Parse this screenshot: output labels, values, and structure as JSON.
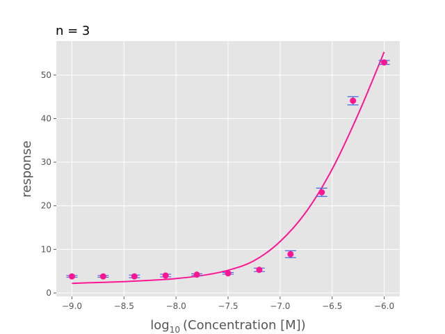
{
  "chart_data": {
    "type": "scatter",
    "title": "n = 3",
    "xlabel_base": "log",
    "xlabel_sub": "10",
    "xlabel_rest": "(Concentration [M])",
    "ylabel": "response",
    "xlim": [
      -9.15,
      -5.85
    ],
    "ylim": [
      -0.8,
      57.8
    ],
    "xticks": [
      -9.0,
      -8.5,
      -8.0,
      -7.5,
      -7.0,
      -6.5,
      -6.0
    ],
    "xtick_labels": [
      "−9.0",
      "−8.5",
      "−8.0",
      "−7.5",
      "−7.0",
      "−6.5",
      "−6.0"
    ],
    "yticks": [
      0,
      10,
      20,
      30,
      40,
      50
    ],
    "ytick_labels": [
      "0",
      "10",
      "20",
      "30",
      "40",
      "50"
    ],
    "grid": true,
    "style": "ggplot",
    "points": {
      "x": [
        -9.0,
        -8.7,
        -8.4,
        -8.1,
        -7.8,
        -7.5,
        -7.2,
        -6.9,
        -6.6,
        -6.3,
        -6.0
      ],
      "y": [
        3.8,
        3.8,
        3.8,
        4.0,
        4.2,
        4.5,
        5.3,
        8.9,
        23.1,
        44.1,
        52.9
      ],
      "err": [
        0.2,
        0.2,
        0.3,
        0.3,
        0.2,
        0.2,
        0.4,
        0.8,
        0.95,
        0.95,
        0.45
      ],
      "color": "#ff1493",
      "err_color": "#4169e1"
    },
    "fit": {
      "x": [
        -9.0,
        -8.75,
        -8.5,
        -8.25,
        -8.0,
        -7.75,
        -7.5,
        -7.25,
        -7.0,
        -6.75,
        -6.5,
        -6.25,
        -6.0
      ],
      "y": [
        2.2,
        2.4,
        2.6,
        2.9,
        3.3,
        4.0,
        5.2,
        7.4,
        11.8,
        18.6,
        28.4,
        41.0,
        55.3
      ],
      "color": "#ff1493"
    }
  }
}
